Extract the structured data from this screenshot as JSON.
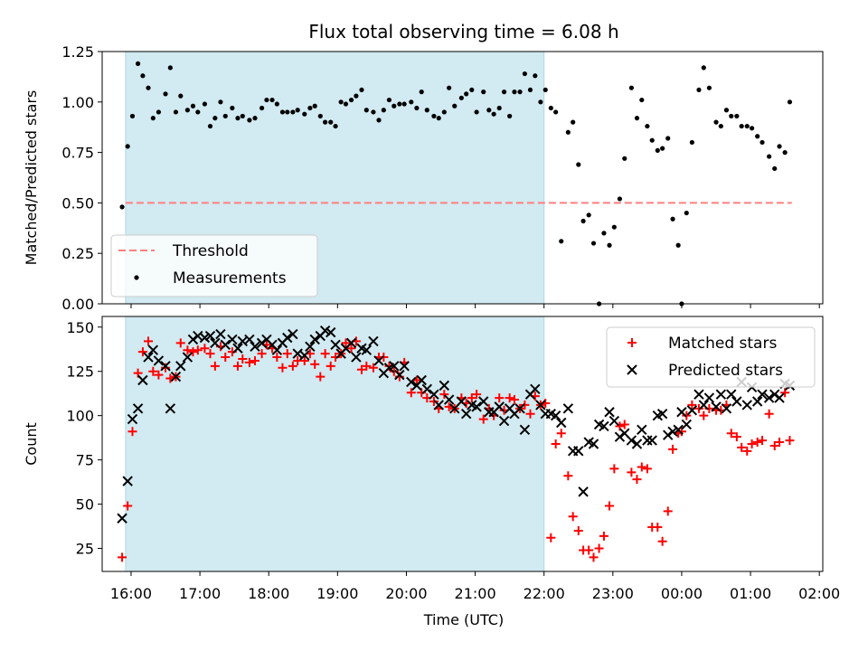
{
  "title": "Flux total observing time = 6.08 h",
  "colors": {
    "shade": "#add8e6",
    "threshold": "#ff7f7f",
    "measurements": "#000000",
    "matched": "#ff0000",
    "predicted": "#000000"
  },
  "x_axis": {
    "label": "Time (UTC)",
    "range_hours": [
      15.58,
      26.05
    ],
    "ticks": [
      {
        "hour": 16,
        "label": "16:00"
      },
      {
        "hour": 17,
        "label": "17:00"
      },
      {
        "hour": 18,
        "label": "18:00"
      },
      {
        "hour": 19,
        "label": "19:00"
      },
      {
        "hour": 20,
        "label": "20:00"
      },
      {
        "hour": 21,
        "label": "21:00"
      },
      {
        "hour": 22,
        "label": "22:00"
      },
      {
        "hour": 23,
        "label": "23:00"
      },
      {
        "hour": 24,
        "label": "00:00"
      },
      {
        "hour": 25,
        "label": "01:00"
      },
      {
        "hour": 26,
        "label": "02:00"
      }
    ]
  },
  "chart_data": [
    {
      "type": "scatter",
      "ylabel": "Matched/Predicted stars",
      "ylim": [
        0,
        1.25
      ],
      "yticks": [
        "0.00",
        "0.25",
        "0.50",
        "0.75",
        "1.00",
        "1.25"
      ],
      "shaded_region": [
        15.92,
        22.0
      ],
      "threshold": {
        "name": "Threshold",
        "value": 0.5,
        "x_range": [
          15.92,
          25.6
        ]
      },
      "legend": {
        "position": "lower-left",
        "entries": [
          "Threshold",
          "Measurements"
        ]
      },
      "series": [
        {
          "name": "Measurements",
          "x": [
            15.87,
            15.95,
            16.02,
            16.1,
            16.17,
            16.25,
            16.32,
            16.4,
            16.5,
            16.57,
            16.65,
            16.72,
            16.82,
            16.9,
            16.97,
            17.07,
            17.15,
            17.22,
            17.3,
            17.37,
            17.47,
            17.55,
            17.62,
            17.72,
            17.8,
            17.9,
            17.97,
            18.05,
            18.12,
            18.2,
            18.27,
            18.35,
            18.42,
            18.52,
            18.6,
            18.67,
            18.75,
            18.82,
            18.9,
            18.97,
            19.05,
            19.12,
            19.2,
            19.27,
            19.35,
            19.42,
            19.52,
            19.6,
            19.67,
            19.75,
            19.82,
            19.9,
            19.97,
            20.07,
            20.15,
            20.22,
            20.3,
            20.4,
            20.47,
            20.55,
            20.62,
            20.7,
            20.8,
            20.87,
            20.95,
            21.02,
            21.12,
            21.2,
            21.27,
            21.35,
            21.42,
            21.5,
            21.57,
            21.65,
            21.72,
            21.8,
            21.87,
            21.95,
            22.02,
            22.1,
            22.17,
            22.25,
            22.35,
            22.42,
            22.5,
            22.57,
            22.65,
            22.72,
            22.8,
            22.87,
            22.95,
            23.02,
            23.1,
            23.17,
            23.27,
            23.35,
            23.42,
            23.5,
            23.57,
            23.65,
            23.72,
            23.8,
            23.87,
            23.95,
            24.0,
            24.07,
            24.15,
            24.25,
            24.32,
            24.4,
            24.5,
            24.57,
            24.65,
            24.72,
            24.8,
            24.87,
            24.95,
            25.02,
            25.1,
            25.17,
            25.27,
            25.35,
            25.42,
            25.5,
            25.57
          ],
          "y": [
            0.48,
            0.78,
            0.93,
            1.19,
            1.13,
            1.07,
            0.92,
            0.95,
            1.04,
            1.17,
            0.95,
            1.03,
            0.96,
            0.98,
            0.95,
            0.99,
            0.88,
            0.92,
            1.0,
            0.93,
            0.97,
            0.92,
            0.93,
            0.91,
            0.92,
            0.97,
            1.01,
            1.01,
            0.99,
            0.95,
            0.95,
            0.95,
            0.96,
            0.94,
            0.97,
            0.98,
            0.93,
            0.9,
            0.9,
            0.88,
            1.0,
            0.99,
            1.01,
            1.03,
            1.06,
            0.96,
            0.95,
            0.91,
            0.96,
            1.01,
            0.98,
            0.99,
            0.99,
            1.0,
            0.97,
            1.05,
            0.96,
            0.93,
            0.92,
            0.95,
            1.07,
            0.98,
            1.02,
            1.04,
            1.06,
            0.95,
            1.05,
            0.96,
            0.94,
            0.97,
            1.05,
            0.93,
            1.05,
            1.05,
            1.14,
            1.06,
            1.13,
            1.0,
            1.06,
            0.97,
            0.95,
            0.31,
            0.85,
            0.9,
            0.69,
            0.41,
            0.44,
            0.3,
            0.0,
            0.35,
            0.29,
            0.38,
            0.52,
            0.72,
            1.07,
            0.92,
            1.01,
            0.88,
            0.81,
            0.76,
            0.77,
            0.82,
            0.42,
            0.29,
            0.0,
            0.45,
            0.8,
            1.06,
            1.17,
            1.07,
            0.9,
            0.88,
            0.96,
            0.93,
            0.93,
            0.88,
            0.88,
            0.87,
            0.83,
            0.8,
            0.73,
            0.67,
            0.78,
            0.75,
            1.0
          ]
        }
      ]
    },
    {
      "type": "scatter",
      "ylabel": "Count",
      "ylim": [
        12,
        156
      ],
      "yticks": [
        "25",
        "50",
        "75",
        "100",
        "125",
        "150"
      ],
      "shaded_region": [
        15.92,
        22.0
      ],
      "legend": {
        "position": "top-right",
        "entries": [
          "Matched stars",
          "Predicted stars"
        ]
      },
      "series": [
        {
          "name": "Matched stars",
          "marker": "plus",
          "x": [
            15.87,
            15.95,
            16.02,
            16.1,
            16.17,
            16.25,
            16.32,
            16.4,
            16.5,
            16.57,
            16.65,
            16.72,
            16.82,
            16.9,
            16.97,
            17.07,
            17.15,
            17.22,
            17.3,
            17.37,
            17.47,
            17.55,
            17.62,
            17.72,
            17.8,
            17.9,
            17.97,
            18.05,
            18.12,
            18.2,
            18.27,
            18.35,
            18.42,
            18.52,
            18.6,
            18.67,
            18.75,
            18.82,
            18.9,
            18.97,
            19.05,
            19.12,
            19.2,
            19.27,
            19.35,
            19.42,
            19.52,
            19.6,
            19.67,
            19.75,
            19.82,
            19.9,
            19.97,
            20.07,
            20.15,
            20.22,
            20.3,
            20.4,
            20.47,
            20.55,
            20.62,
            20.7,
            20.8,
            20.87,
            20.95,
            21.02,
            21.12,
            21.2,
            21.27,
            21.35,
            21.42,
            21.5,
            21.57,
            21.65,
            21.72,
            21.8,
            21.87,
            21.95,
            22.02,
            22.1,
            22.17,
            22.25,
            22.35,
            22.42,
            22.5,
            22.57,
            22.65,
            22.72,
            22.8,
            22.87,
            22.95,
            23.02,
            23.1,
            23.17,
            23.27,
            23.35,
            23.42,
            23.5,
            23.57,
            23.65,
            23.72,
            23.8,
            23.87,
            23.95,
            24.0,
            24.07,
            24.15,
            24.25,
            24.32,
            24.4,
            24.5,
            24.57,
            24.65,
            24.72,
            24.8,
            24.87,
            24.95,
            25.02,
            25.1,
            25.17,
            25.27,
            25.35,
            25.42,
            25.5,
            25.57
          ],
          "y": [
            20,
            49,
            91,
            124,
            136,
            142,
            125,
            123,
            127,
            121,
            122,
            141,
            137,
            136,
            137,
            138,
            135,
            128,
            139,
            133,
            136,
            128,
            132,
            130,
            131,
            135,
            140,
            138,
            133,
            127,
            135,
            128,
            131,
            131,
            135,
            129,
            122,
            135,
            128,
            133,
            135,
            141,
            138,
            142,
            126,
            128,
            127,
            133,
            133,
            128,
            125,
            122,
            130,
            113,
            120,
            113,
            110,
            108,
            104,
            112,
            105,
            104,
            110,
            107,
            110,
            112,
            98,
            104,
            100,
            110,
            103,
            110,
            109,
            104,
            106,
            101,
            111,
            106,
            107,
            31,
            84,
            90,
            66,
            43,
            35,
            24,
            24,
            20,
            25,
            32,
            49,
            70,
            94,
            95,
            68,
            64,
            71,
            70,
            37,
            37,
            29,
            46,
            81,
            90,
            91,
            100,
            106,
            104,
            100,
            104,
            103,
            103,
            106,
            90,
            88,
            82,
            80,
            84,
            85,
            86,
            101,
            83,
            85,
            113,
            86
          ]
        },
        {
          "name": "Predicted stars",
          "marker": "x",
          "x": [
            15.87,
            15.95,
            16.02,
            16.1,
            16.17,
            16.25,
            16.32,
            16.4,
            16.5,
            16.57,
            16.65,
            16.72,
            16.82,
            16.9,
            16.97,
            17.07,
            17.15,
            17.22,
            17.3,
            17.37,
            17.47,
            17.55,
            17.62,
            17.72,
            17.8,
            17.9,
            17.97,
            18.05,
            18.12,
            18.2,
            18.27,
            18.35,
            18.42,
            18.52,
            18.6,
            18.67,
            18.75,
            18.82,
            18.9,
            18.97,
            19.05,
            19.12,
            19.2,
            19.27,
            19.35,
            19.42,
            19.52,
            19.6,
            19.67,
            19.75,
            19.82,
            19.9,
            19.97,
            20.07,
            20.15,
            20.22,
            20.3,
            20.4,
            20.47,
            20.55,
            20.62,
            20.7,
            20.8,
            20.87,
            20.95,
            21.02,
            21.12,
            21.2,
            21.27,
            21.35,
            21.42,
            21.5,
            21.57,
            21.65,
            21.72,
            21.8,
            21.87,
            21.95,
            22.02,
            22.1,
            22.17,
            22.25,
            22.35,
            22.42,
            22.5,
            22.57,
            22.65,
            22.72,
            22.8,
            22.87,
            22.95,
            23.02,
            23.1,
            23.17,
            23.27,
            23.35,
            23.42,
            23.5,
            23.57,
            23.65,
            23.72,
            23.8,
            23.87,
            23.95,
            24.0,
            24.07,
            24.15,
            24.25,
            24.32,
            24.4,
            24.5,
            24.57,
            24.65,
            24.72,
            24.8,
            24.87,
            24.95,
            25.02,
            25.1,
            25.17,
            25.27,
            25.35,
            25.42,
            25.5,
            25.57
          ],
          "y": [
            42,
            63,
            98,
            104,
            120,
            133,
            137,
            131,
            128,
            104,
            122,
            128,
            133,
            143,
            145,
            144,
            145,
            141,
            146,
            140,
            143,
            138,
            142,
            143,
            139,
            141,
            143,
            140,
            137,
            141,
            144,
            146,
            135,
            134,
            139,
            143,
            145,
            148,
            147,
            140,
            135,
            138,
            141,
            133,
            138,
            137,
            142,
            131,
            124,
            127,
            128,
            123,
            128,
            119,
            117,
            120,
            115,
            112,
            106,
            117,
            109,
            104,
            108,
            101,
            106,
            105,
            108,
            102,
            102,
            105,
            97,
            104,
            101,
            104,
            92,
            112,
            115,
            106,
            101,
            101,
            100,
            96,
            104,
            80,
            80,
            57,
            85,
            84,
            95,
            94,
            102,
            97,
            88,
            90,
            86,
            84,
            92,
            86,
            86,
            100,
            101,
            89,
            91,
            92,
            102,
            95,
            103,
            112,
            106,
            110,
            105,
            112,
            104,
            112,
            108,
            119,
            106,
            116,
            108,
            112,
            110,
            112,
            110,
            118,
            117
          ]
        }
      ]
    }
  ]
}
